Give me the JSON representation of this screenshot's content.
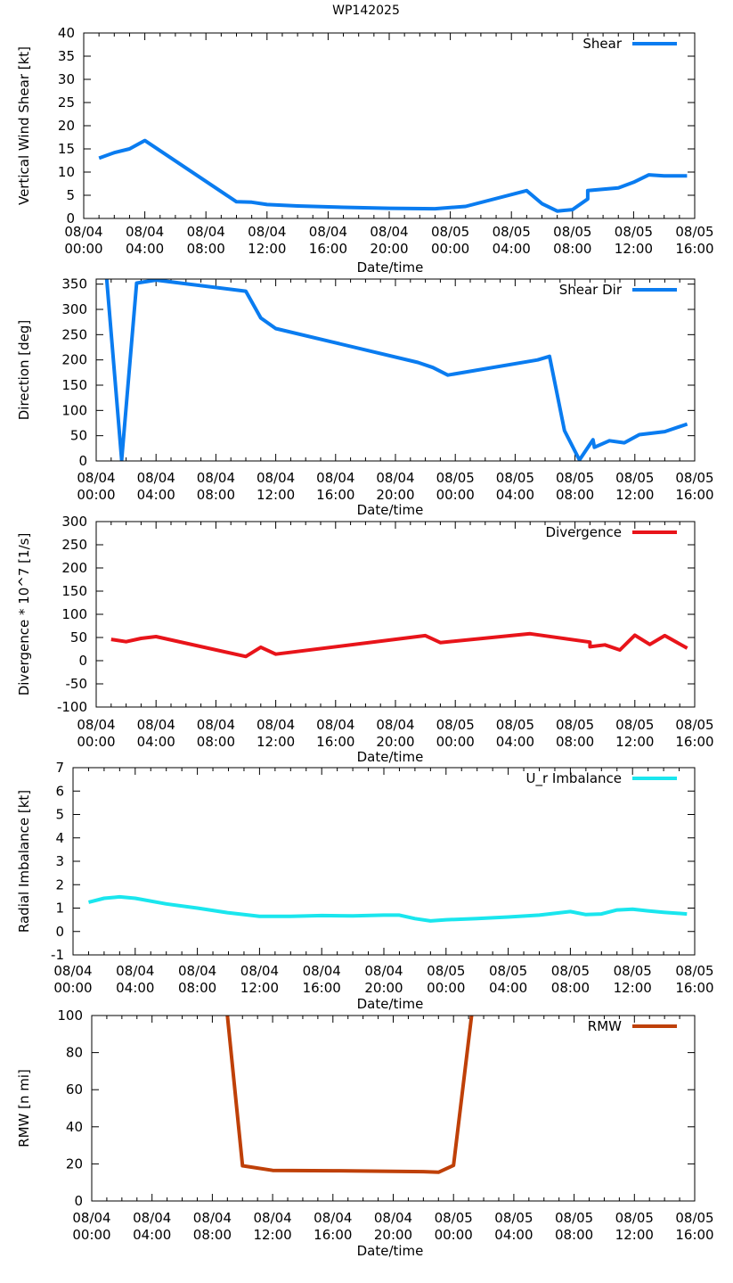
{
  "figure_title": "WP142025",
  "chart_data": [
    {
      "type": "line",
      "id": "shear",
      "title": "",
      "xlabel": "Date/time",
      "ylabel": "Vertical Wind Shear [kt]",
      "xlim": [
        0,
        40
      ],
      "ylim": [
        0,
        40
      ],
      "yticks": [
        0,
        5,
        10,
        15,
        20,
        25,
        30,
        35,
        40
      ],
      "xticks": [
        0,
        4,
        8,
        12,
        16,
        20,
        24,
        28,
        32,
        36,
        40
      ],
      "xtick_labels": [
        [
          "08/04",
          "00:00"
        ],
        [
          "08/04",
          "04:00"
        ],
        [
          "08/04",
          "08:00"
        ],
        [
          "08/04",
          "12:00"
        ],
        [
          "08/04",
          "16:00"
        ],
        [
          "08/04",
          "20:00"
        ],
        [
          "08/05",
          "00:00"
        ],
        [
          "08/05",
          "04:00"
        ],
        [
          "08/05",
          "08:00"
        ],
        [
          "08/05",
          "12:00"
        ],
        [
          "08/05",
          "16:00"
        ]
      ],
      "legend": "top-right",
      "series": [
        {
          "name": "Shear",
          "color": "#0a7cf0",
          "x": [
            1,
            2,
            3,
            4,
            10,
            11,
            12,
            14,
            17,
            20,
            23,
            25,
            29,
            30,
            31,
            32,
            33,
            33,
            34,
            35,
            36,
            37,
            38,
            39.5
          ],
          "y": [
            13,
            14.2,
            15,
            16.8,
            3.6,
            3.5,
            3.0,
            2.7,
            2.4,
            2.2,
            2.1,
            2.6,
            6.0,
            3.2,
            1.6,
            1.9,
            4.2,
            6.0,
            6.3,
            6.6,
            7.8,
            9.4,
            9.2,
            9.2
          ]
        }
      ]
    },
    {
      "type": "line",
      "id": "shear-dir",
      "title": "",
      "xlabel": "Date/time",
      "ylabel": "Direction [deg]",
      "xlim": [
        0,
        40
      ],
      "ylim": [
        0,
        360
      ],
      "yticks": [
        0,
        50,
        100,
        150,
        200,
        250,
        300,
        350
      ],
      "xticks": [
        0,
        4,
        8,
        12,
        16,
        20,
        24,
        28,
        32,
        36,
        40
      ],
      "xtick_labels": [
        [
          "08/04",
          "00:00"
        ],
        [
          "08/04",
          "04:00"
        ],
        [
          "08/04",
          "08:00"
        ],
        [
          "08/04",
          "12:00"
        ],
        [
          "08/04",
          "16:00"
        ],
        [
          "08/04",
          "20:00"
        ],
        [
          "08/05",
          "00:00"
        ],
        [
          "08/05",
          "04:00"
        ],
        [
          "08/05",
          "08:00"
        ],
        [
          "08/05",
          "12:00"
        ],
        [
          "08/05",
          "16:00"
        ]
      ],
      "legend": "top-right",
      "series": [
        {
          "name": "Shear Dir",
          "color": "#0a7cf0",
          "x": [
            0.7,
            1.7,
            2.7,
            4,
            10,
            11,
            12,
            21.5,
            22.5,
            23.5,
            29.5,
            30.3,
            31.3,
            32.3,
            33.2,
            33.3,
            34.3,
            35.3,
            36.3,
            38,
            39.5
          ],
          "y": [
            360,
            2,
            352,
            358,
            336,
            283,
            262,
            195,
            185,
            170,
            200,
            207,
            60,
            2,
            42,
            27,
            40,
            36,
            52,
            58,
            73
          ]
        }
      ]
    },
    {
      "type": "line",
      "id": "divergence",
      "title": "",
      "xlabel": "Date/time",
      "ylabel": "Divergence * 10^7 [1/s]",
      "xlim": [
        0,
        40
      ],
      "ylim": [
        -100,
        300
      ],
      "yticks": [
        -100,
        -50,
        0,
        50,
        100,
        150,
        200,
        250,
        300
      ],
      "xticks": [
        0,
        4,
        8,
        12,
        16,
        20,
        24,
        28,
        32,
        36,
        40
      ],
      "xtick_labels": [
        [
          "08/04",
          "00:00"
        ],
        [
          "08/04",
          "04:00"
        ],
        [
          "08/04",
          "08:00"
        ],
        [
          "08/04",
          "12:00"
        ],
        [
          "08/04",
          "16:00"
        ],
        [
          "08/04",
          "20:00"
        ],
        [
          "08/05",
          "00:00"
        ],
        [
          "08/05",
          "04:00"
        ],
        [
          "08/05",
          "08:00"
        ],
        [
          "08/05",
          "12:00"
        ],
        [
          "08/05",
          "16:00"
        ]
      ],
      "legend": "top-right",
      "series": [
        {
          "name": "Divergence",
          "color": "#e8141a",
          "x": [
            1,
            2,
            3,
            4,
            10,
            11,
            12,
            22,
            23,
            29,
            33,
            33,
            34,
            35,
            36,
            37,
            38,
            39.5
          ],
          "y": [
            46,
            41,
            48,
            52,
            9,
            29,
            14,
            54,
            39,
            58,
            40,
            30,
            34,
            23,
            55,
            35,
            54,
            27
          ]
        }
      ]
    },
    {
      "type": "line",
      "id": "radial-imbalance",
      "title": "",
      "xlabel": "Date/time",
      "ylabel": "Radial Imbalance [kt]",
      "xlim": [
        0,
        40
      ],
      "ylim": [
        -1,
        7
      ],
      "yticks": [
        -1,
        0,
        1,
        2,
        3,
        4,
        5,
        6,
        7
      ],
      "xticks": [
        0,
        4,
        8,
        12,
        16,
        20,
        24,
        28,
        32,
        36,
        40
      ],
      "xtick_labels": [
        [
          "08/04",
          "00:00"
        ],
        [
          "08/04",
          "04:00"
        ],
        [
          "08/04",
          "08:00"
        ],
        [
          "08/04",
          "12:00"
        ],
        [
          "08/04",
          "16:00"
        ],
        [
          "08/04",
          "20:00"
        ],
        [
          "08/05",
          "00:00"
        ],
        [
          "08/05",
          "04:00"
        ],
        [
          "08/05",
          "08:00"
        ],
        [
          "08/05",
          "12:00"
        ],
        [
          "08/05",
          "16:00"
        ]
      ],
      "legend": "top-right",
      "series": [
        {
          "name": "U_r Imbalance",
          "color": "#1ae6ee",
          "x": [
            1,
            2,
            3,
            4,
            6,
            8,
            10,
            12,
            14,
            16,
            18,
            20,
            21,
            22,
            23,
            24,
            26,
            28,
            30,
            32,
            33,
            34,
            35,
            36,
            37,
            38,
            39.5
          ],
          "y": [
            1.25,
            1.42,
            1.48,
            1.42,
            1.18,
            1.0,
            0.8,
            0.65,
            0.65,
            0.68,
            0.67,
            0.7,
            0.7,
            0.55,
            0.45,
            0.5,
            0.55,
            0.62,
            0.7,
            0.85,
            0.72,
            0.75,
            0.92,
            0.95,
            0.88,
            0.82,
            0.75
          ]
        }
      ]
    },
    {
      "type": "line",
      "id": "rmw",
      "title": "",
      "xlabel": "Date/time",
      "ylabel": "RMW [n mi]",
      "xlim": [
        0,
        40
      ],
      "ylim": [
        0,
        100
      ],
      "yticks": [
        0,
        20,
        40,
        60,
        80,
        100
      ],
      "xticks": [
        0,
        4,
        8,
        12,
        16,
        20,
        24,
        28,
        32,
        36,
        40
      ],
      "xtick_labels": [
        [
          "08/04",
          "00:00"
        ],
        [
          "08/04",
          "04:00"
        ],
        [
          "08/04",
          "08:00"
        ],
        [
          "08/04",
          "12:00"
        ],
        [
          "08/04",
          "16:00"
        ],
        [
          "08/04",
          "20:00"
        ],
        [
          "08/05",
          "00:00"
        ],
        [
          "08/05",
          "04:00"
        ],
        [
          "08/05",
          "08:00"
        ],
        [
          "08/05",
          "12:00"
        ],
        [
          "08/05",
          "16:00"
        ]
      ],
      "legend": "top-right",
      "series": [
        {
          "name": "RMW",
          "color": "#bf4008",
          "x": [
            9,
            10,
            12,
            16,
            22,
            23,
            24,
            25.2
          ],
          "y": [
            100,
            19,
            16.5,
            16.3,
            15.8,
            15.5,
            19.2,
            100
          ]
        }
      ]
    }
  ]
}
